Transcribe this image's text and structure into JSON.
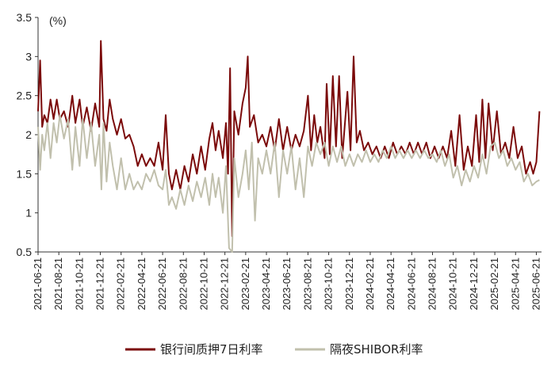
{
  "chart_data": {
    "type": "line",
    "unit_label": "(%)",
    "ylim": [
      0.5,
      3.5
    ],
    "yticks": [
      "0.5",
      "1",
      "1.5",
      "2",
      "2.5",
      "3",
      "3.5"
    ],
    "x_tick_labels": [
      "2021-06-21",
      "2021-08-21",
      "2021-10-21",
      "2021-12-21",
      "2022-02-21",
      "2022-04-21",
      "2022-06-21",
      "2022-08-21",
      "2022-10-21",
      "2022-12-21",
      "2023-02-21",
      "2023-04-21",
      "2023-06-21",
      "2023-08-21",
      "2023-10-21",
      "2023-12-21",
      "2024-02-21",
      "2024-04-21",
      "2024-06-21",
      "2024-08-21",
      "2024-10-21",
      "2024-12-21",
      "2025-02-21",
      "2025-04-21",
      "2025-06-21"
    ],
    "x_tick_months": [
      0,
      2,
      4,
      6,
      8,
      10,
      12,
      14,
      16,
      18,
      20,
      22,
      24,
      26,
      28,
      30,
      32,
      34,
      36,
      38,
      40,
      42,
      44,
      46,
      48
    ],
    "x_range_months": [
      0,
      48.5
    ],
    "legend": "bottom",
    "grid": false,
    "series": [
      {
        "name": "银行间质押7日利率",
        "color": "#7b0a0a",
        "points": [
          [
            0,
            2.3
          ],
          [
            0.2,
            2.95
          ],
          [
            0.4,
            2.1
          ],
          [
            0.6,
            2.25
          ],
          [
            0.9,
            2.15
          ],
          [
            1.2,
            2.45
          ],
          [
            1.5,
            2.2
          ],
          [
            1.8,
            2.45
          ],
          [
            2.1,
            2.2
          ],
          [
            2.5,
            2.3
          ],
          [
            2.9,
            2.1
          ],
          [
            3.3,
            2.5
          ],
          [
            3.6,
            2.15
          ],
          [
            4.0,
            2.45
          ],
          [
            4.3,
            2.1
          ],
          [
            4.7,
            2.35
          ],
          [
            5.1,
            2.05
          ],
          [
            5.5,
            2.4
          ],
          [
            5.9,
            2.1
          ],
          [
            6.05,
            3.2
          ],
          [
            6.3,
            2.2
          ],
          [
            6.6,
            2.05
          ],
          [
            6.9,
            2.45
          ],
          [
            7.2,
            2.2
          ],
          [
            7.6,
            2.0
          ],
          [
            8.0,
            2.2
          ],
          [
            8.4,
            1.95
          ],
          [
            8.8,
            2.0
          ],
          [
            9.2,
            1.85
          ],
          [
            9.6,
            1.6
          ],
          [
            10.0,
            1.75
          ],
          [
            10.4,
            1.6
          ],
          [
            10.8,
            1.7
          ],
          [
            11.2,
            1.6
          ],
          [
            11.6,
            1.9
          ],
          [
            12.0,
            1.55
          ],
          [
            12.3,
            2.25
          ],
          [
            12.6,
            1.5
          ],
          [
            12.9,
            1.3
          ],
          [
            13.3,
            1.55
          ],
          [
            13.7,
            1.3
          ],
          [
            14.1,
            1.6
          ],
          [
            14.5,
            1.4
          ],
          [
            14.9,
            1.75
          ],
          [
            15.3,
            1.5
          ],
          [
            15.7,
            1.85
          ],
          [
            16.1,
            1.55
          ],
          [
            16.5,
            1.95
          ],
          [
            16.8,
            2.15
          ],
          [
            17.1,
            1.8
          ],
          [
            17.4,
            2.05
          ],
          [
            17.8,
            1.7
          ],
          [
            18.1,
            2.15
          ],
          [
            18.3,
            1.5
          ],
          [
            18.5,
            2.85
          ],
          [
            18.7,
            0.7
          ],
          [
            18.9,
            2.3
          ],
          [
            19.3,
            2.0
          ],
          [
            19.7,
            2.4
          ],
          [
            20.0,
            2.6
          ],
          [
            20.2,
            3.0
          ],
          [
            20.4,
            2.1
          ],
          [
            20.8,
            2.25
          ],
          [
            21.2,
            1.9
          ],
          [
            21.6,
            2.0
          ],
          [
            22.0,
            1.85
          ],
          [
            22.4,
            2.1
          ],
          [
            22.8,
            1.8
          ],
          [
            23.2,
            2.2
          ],
          [
            23.6,
            1.8
          ],
          [
            24.0,
            2.1
          ],
          [
            24.4,
            1.8
          ],
          [
            24.8,
            2.0
          ],
          [
            25.2,
            1.85
          ],
          [
            25.6,
            2.05
          ],
          [
            26.0,
            2.5
          ],
          [
            26.3,
            1.8
          ],
          [
            26.6,
            2.25
          ],
          [
            26.9,
            1.9
          ],
          [
            27.2,
            2.1
          ],
          [
            27.6,
            1.7
          ],
          [
            27.8,
            2.65
          ],
          [
            28.1,
            1.75
          ],
          [
            28.4,
            2.75
          ],
          [
            28.7,
            1.85
          ],
          [
            29.0,
            2.75
          ],
          [
            29.3,
            1.7
          ],
          [
            29.8,
            2.55
          ],
          [
            30.1,
            1.8
          ],
          [
            30.4,
            3.0
          ],
          [
            30.7,
            1.9
          ],
          [
            31.0,
            2.05
          ],
          [
            31.4,
            1.8
          ],
          [
            31.8,
            1.9
          ],
          [
            32.2,
            1.75
          ],
          [
            32.6,
            1.85
          ],
          [
            33.0,
            1.7
          ],
          [
            33.4,
            1.85
          ],
          [
            33.8,
            1.7
          ],
          [
            34.2,
            1.9
          ],
          [
            34.6,
            1.75
          ],
          [
            35.0,
            1.85
          ],
          [
            35.4,
            1.75
          ],
          [
            35.8,
            1.9
          ],
          [
            36.2,
            1.75
          ],
          [
            36.6,
            1.9
          ],
          [
            37.0,
            1.75
          ],
          [
            37.4,
            1.9
          ],
          [
            37.8,
            1.7
          ],
          [
            38.2,
            1.85
          ],
          [
            38.6,
            1.7
          ],
          [
            39.0,
            1.85
          ],
          [
            39.4,
            1.7
          ],
          [
            39.8,
            2.05
          ],
          [
            40.2,
            1.6
          ],
          [
            40.6,
            2.25
          ],
          [
            41.0,
            1.55
          ],
          [
            41.4,
            1.85
          ],
          [
            41.8,
            1.6
          ],
          [
            42.2,
            2.25
          ],
          [
            42.5,
            1.65
          ],
          [
            42.8,
            2.45
          ],
          [
            43.1,
            1.7
          ],
          [
            43.4,
            2.4
          ],
          [
            43.8,
            1.8
          ],
          [
            44.2,
            2.3
          ],
          [
            44.6,
            1.75
          ],
          [
            45.0,
            1.9
          ],
          [
            45.4,
            1.7
          ],
          [
            45.8,
            2.1
          ],
          [
            46.2,
            1.7
          ],
          [
            46.6,
            1.85
          ],
          [
            47.0,
            1.5
          ],
          [
            47.4,
            1.65
          ],
          [
            47.7,
            1.5
          ],
          [
            48.0,
            1.65
          ],
          [
            48.3,
            2.3
          ]
        ]
      },
      {
        "name": "隔夜SHIBOR利率",
        "color": "#c1c0ad",
        "points": [
          [
            0,
            2.1
          ],
          [
            0.2,
            1.55
          ],
          [
            0.4,
            2.0
          ],
          [
            0.6,
            1.8
          ],
          [
            0.9,
            2.15
          ],
          [
            1.2,
            1.7
          ],
          [
            1.5,
            2.15
          ],
          [
            1.8,
            1.9
          ],
          [
            2.1,
            2.25
          ],
          [
            2.5,
            1.95
          ],
          [
            2.9,
            2.2
          ],
          [
            3.3,
            1.55
          ],
          [
            3.6,
            2.1
          ],
          [
            4.0,
            1.6
          ],
          [
            4.3,
            2.2
          ],
          [
            4.7,
            1.7
          ],
          [
            5.1,
            2.15
          ],
          [
            5.5,
            1.6
          ],
          [
            5.9,
            2.0
          ],
          [
            6.1,
            1.3
          ],
          [
            6.3,
            2.15
          ],
          [
            6.6,
            1.4
          ],
          [
            6.9,
            1.9
          ],
          [
            7.2,
            1.6
          ],
          [
            7.6,
            1.3
          ],
          [
            8.0,
            1.7
          ],
          [
            8.4,
            1.3
          ],
          [
            8.8,
            1.5
          ],
          [
            9.2,
            1.3
          ],
          [
            9.6,
            1.4
          ],
          [
            10.0,
            1.3
          ],
          [
            10.4,
            1.5
          ],
          [
            10.8,
            1.4
          ],
          [
            11.2,
            1.55
          ],
          [
            11.6,
            1.35
          ],
          [
            12.0,
            1.3
          ],
          [
            12.3,
            1.55
          ],
          [
            12.6,
            1.1
          ],
          [
            12.9,
            1.2
          ],
          [
            13.3,
            1.05
          ],
          [
            13.7,
            1.3
          ],
          [
            14.1,
            1.1
          ],
          [
            14.5,
            1.35
          ],
          [
            14.9,
            1.15
          ],
          [
            15.3,
            1.4
          ],
          [
            15.7,
            1.2
          ],
          [
            16.1,
            1.45
          ],
          [
            16.5,
            1.1
          ],
          [
            16.8,
            1.5
          ],
          [
            17.1,
            1.2
          ],
          [
            17.4,
            1.45
          ],
          [
            17.8,
            1.0
          ],
          [
            18.1,
            1.6
          ],
          [
            18.4,
            0.55
          ],
          [
            18.7,
            0.5
          ],
          [
            18.9,
            1.7
          ],
          [
            19.3,
            1.2
          ],
          [
            19.7,
            1.5
          ],
          [
            20.0,
            1.8
          ],
          [
            20.3,
            1.3
          ],
          [
            20.6,
            1.9
          ],
          [
            20.9,
            0.9
          ],
          [
            21.2,
            1.7
          ],
          [
            21.6,
            1.5
          ],
          [
            22.0,
            1.8
          ],
          [
            22.4,
            1.5
          ],
          [
            22.8,
            1.9
          ],
          [
            23.2,
            1.2
          ],
          [
            23.6,
            1.8
          ],
          [
            24.0,
            1.5
          ],
          [
            24.4,
            1.85
          ],
          [
            24.8,
            1.3
          ],
          [
            25.2,
            1.7
          ],
          [
            25.6,
            1.2
          ],
          [
            26.0,
            1.85
          ],
          [
            26.4,
            1.6
          ],
          [
            26.8,
            1.9
          ],
          [
            27.2,
            1.75
          ],
          [
            27.6,
            1.9
          ],
          [
            28.0,
            1.6
          ],
          [
            28.4,
            1.85
          ],
          [
            28.8,
            1.65
          ],
          [
            29.2,
            1.85
          ],
          [
            29.6,
            1.6
          ],
          [
            30.0,
            1.75
          ],
          [
            30.4,
            1.6
          ],
          [
            30.8,
            1.75
          ],
          [
            31.2,
            1.65
          ],
          [
            31.6,
            1.8
          ],
          [
            32.0,
            1.65
          ],
          [
            32.4,
            1.75
          ],
          [
            32.8,
            1.65
          ],
          [
            33.2,
            1.8
          ],
          [
            33.6,
            1.7
          ],
          [
            34.0,
            1.85
          ],
          [
            34.4,
            1.7
          ],
          [
            34.8,
            1.8
          ],
          [
            35.2,
            1.7
          ],
          [
            35.6,
            1.8
          ],
          [
            36.0,
            1.7
          ],
          [
            36.4,
            1.8
          ],
          [
            36.8,
            1.7
          ],
          [
            37.2,
            1.8
          ],
          [
            37.6,
            1.7
          ],
          [
            38.0,
            1.75
          ],
          [
            38.4,
            1.65
          ],
          [
            38.8,
            1.8
          ],
          [
            39.2,
            1.6
          ],
          [
            39.6,
            1.75
          ],
          [
            40.0,
            1.45
          ],
          [
            40.4,
            1.6
          ],
          [
            40.8,
            1.35
          ],
          [
            41.2,
            1.55
          ],
          [
            41.6,
            1.4
          ],
          [
            42.0,
            1.6
          ],
          [
            42.4,
            1.45
          ],
          [
            42.8,
            1.75
          ],
          [
            43.2,
            1.5
          ],
          [
            43.6,
            1.85
          ],
          [
            44.0,
            1.9
          ],
          [
            44.4,
            1.7
          ],
          [
            44.8,
            1.8
          ],
          [
            45.2,
            1.6
          ],
          [
            45.6,
            1.7
          ],
          [
            46.0,
            1.55
          ],
          [
            46.4,
            1.65
          ],
          [
            46.8,
            1.4
          ],
          [
            47.2,
            1.5
          ],
          [
            47.6,
            1.35
          ],
          [
            48.0,
            1.4
          ],
          [
            48.3,
            1.42
          ]
        ]
      }
    ]
  }
}
